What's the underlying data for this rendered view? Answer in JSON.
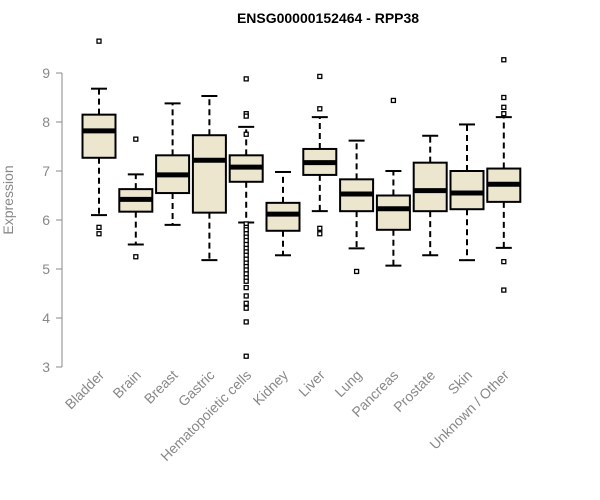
{
  "chart_data": {
    "type": "box",
    "title": "ENSG00000152464 - RPP38",
    "ylabel": "Expression",
    "xlabel": "",
    "ylim": [
      3,
      9.9
    ],
    "yticks": [
      3,
      4,
      5,
      6,
      7,
      8,
      9
    ],
    "grid": false,
    "colors": {
      "box_fill": "#ede6cf",
      "box_stroke": "#000000",
      "axis": "#888888"
    },
    "categories": [
      "Bladder",
      "Brain",
      "Breast",
      "Gastric",
      "Hematopoietic cells",
      "Kidney",
      "Liver",
      "Lung",
      "Pancreas",
      "Prostate",
      "Skin",
      "Unknown / Other"
    ],
    "boxes": [
      {
        "category": "Bladder",
        "whisker_low": 6.1,
        "q1": 7.27,
        "median": 7.82,
        "q3": 8.15,
        "whisker_high": 8.68,
        "outliers": [
          9.65,
          5.85,
          5.72
        ]
      },
      {
        "category": "Brain",
        "whisker_low": 5.5,
        "q1": 6.17,
        "median": 6.42,
        "q3": 6.63,
        "whisker_high": 6.93,
        "outliers": [
          7.65,
          5.25
        ]
      },
      {
        "category": "Breast",
        "whisker_low": 5.9,
        "q1": 6.55,
        "median": 6.92,
        "q3": 7.32,
        "whisker_high": 8.38,
        "outliers": []
      },
      {
        "category": "Gastric",
        "whisker_low": 5.18,
        "q1": 6.15,
        "median": 7.22,
        "q3": 7.73,
        "whisker_high": 8.53,
        "outliers": []
      },
      {
        "category": "Hematopoietic cells",
        "whisker_low": 5.95,
        "q1": 6.78,
        "median": 7.08,
        "q3": 7.32,
        "whisker_high": 7.9,
        "outliers": [
          8.88,
          8.17,
          8.12,
          7.75,
          5.92,
          5.85,
          5.8,
          5.72,
          5.65,
          5.58,
          5.5,
          5.42,
          5.35,
          5.28,
          5.2,
          5.12,
          5.05,
          4.98,
          4.9,
          4.82,
          4.75,
          4.62,
          4.45,
          4.3,
          4.2,
          3.92,
          3.22
        ]
      },
      {
        "category": "Kidney",
        "whisker_low": 5.28,
        "q1": 5.78,
        "median": 6.12,
        "q3": 6.35,
        "whisker_high": 6.98,
        "outliers": []
      },
      {
        "category": "Liver",
        "whisker_low": 6.18,
        "q1": 6.92,
        "median": 7.17,
        "q3": 7.45,
        "whisker_high": 8.1,
        "outliers": [
          8.93,
          8.27,
          5.83,
          5.72
        ]
      },
      {
        "category": "Lung",
        "whisker_low": 5.42,
        "q1": 6.18,
        "median": 6.53,
        "q3": 6.83,
        "whisker_high": 7.62,
        "outliers": [
          4.95
        ]
      },
      {
        "category": "Pancreas",
        "whisker_low": 5.07,
        "q1": 5.8,
        "median": 6.23,
        "q3": 6.5,
        "whisker_high": 7.0,
        "outliers": [
          8.44
        ]
      },
      {
        "category": "Prostate",
        "whisker_low": 5.28,
        "q1": 6.18,
        "median": 6.6,
        "q3": 7.17,
        "whisker_high": 7.72,
        "outliers": []
      },
      {
        "category": "Skin",
        "whisker_low": 5.18,
        "q1": 6.22,
        "median": 6.55,
        "q3": 7.0,
        "whisker_high": 7.95,
        "outliers": []
      },
      {
        "category": "Unknown / Other",
        "whisker_low": 5.43,
        "q1": 6.37,
        "median": 6.73,
        "q3": 7.05,
        "whisker_high": 8.1,
        "outliers": [
          9.27,
          8.5,
          8.3,
          8.17,
          5.15,
          4.57
        ]
      }
    ]
  }
}
